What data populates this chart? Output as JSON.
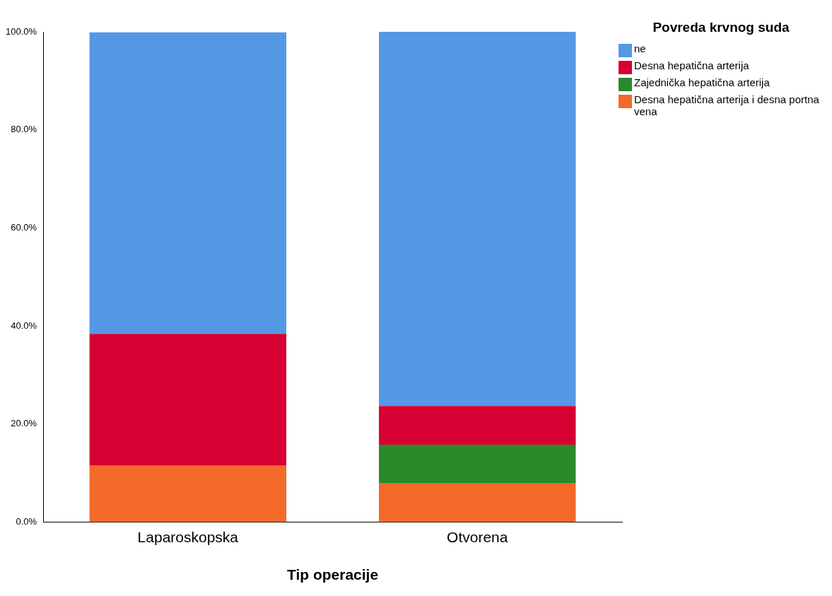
{
  "chart_data": {
    "type": "bar",
    "stacked": true,
    "xlabel": "Tip operacije",
    "legend_title": "Povreda krvnog suda",
    "legend": "top right",
    "grid": false,
    "categories": [
      "Laparoskopska",
      "Otvorena"
    ],
    "series": [
      {
        "name": "Desna hepatična arterija i desna portna vena",
        "color": "#f2692a",
        "values": [
          11.5,
          7.9
        ]
      },
      {
        "name": "Zajednička hepatična arterija",
        "color": "#2a8a2a",
        "values": [
          0,
          7.9
        ]
      },
      {
        "name": "Desna hepatična arterija",
        "color": "#d60032",
        "values": [
          26.9,
          7.9
        ]
      },
      {
        "name": "ne",
        "color": "#5598e6",
        "values": [
          61.5,
          76.3
        ]
      }
    ],
    "ylim": [
      0,
      100
    ],
    "yticks": [
      {
        "value": 0,
        "label": "0.0%"
      },
      {
        "value": 20,
        "label": "20.0%"
      },
      {
        "value": 40,
        "label": "40.0%"
      },
      {
        "value": 60,
        "label": "60.0%"
      },
      {
        "value": 80,
        "label": "80.0%"
      },
      {
        "value": 100,
        "label": "100.0%"
      }
    ]
  }
}
